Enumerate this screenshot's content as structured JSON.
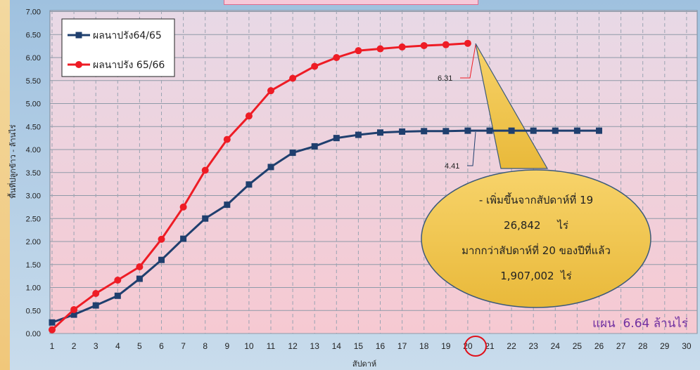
{
  "chart_data": {
    "type": "line",
    "xlabel": "สัปดาห์",
    "ylabel": "พื้นที่ปลูกข้าว - ล้านไร่",
    "xlim": [
      1,
      30
    ],
    "ylim": [
      0,
      7
    ],
    "x_ticks": [
      "1",
      "2",
      "3",
      "4",
      "5",
      "6",
      "7",
      "8",
      "9",
      "10",
      "11",
      "12",
      "13",
      "14",
      "15",
      "16",
      "17",
      "18",
      "19",
      "20",
      "21",
      "22",
      "23",
      "24",
      "25",
      "26",
      "27",
      "28",
      "29",
      "30"
    ],
    "y_ticks": [
      "0.00",
      "0.50",
      "1.00",
      "1.50",
      "2.00",
      "2.50",
      "3.00",
      "3.50",
      "4.00",
      "4.50",
      "5.00",
      "5.50",
      "6.00",
      "6.50",
      "7.00"
    ],
    "grid": true,
    "legend_position": "top-left",
    "series": [
      {
        "name": "ผลนาปรัง64/65",
        "color": "#1f3f6e",
        "marker": "square",
        "x": [
          1,
          2,
          3,
          4,
          5,
          6,
          7,
          8,
          9,
          10,
          11,
          12,
          13,
          14,
          15,
          16,
          17,
          18,
          19,
          20,
          21,
          22,
          23,
          24,
          25,
          26
        ],
        "values": [
          0.24,
          0.41,
          0.61,
          0.82,
          1.19,
          1.6,
          2.06,
          2.5,
          2.8,
          3.24,
          3.62,
          3.93,
          4.07,
          4.25,
          4.32,
          4.37,
          4.39,
          4.4,
          4.4,
          4.41,
          4.41,
          4.41,
          4.41,
          4.41,
          4.41,
          4.41
        ]
      },
      {
        "name": "ผลนาปรัง 65/66",
        "color": "#ee1c25",
        "marker": "circle",
        "x": [
          1,
          2,
          3,
          4,
          5,
          6,
          7,
          8,
          9,
          10,
          11,
          12,
          13,
          14,
          15,
          16,
          17,
          18,
          19,
          20
        ],
        "values": [
          0.08,
          0.52,
          0.87,
          1.16,
          1.45,
          2.05,
          2.75,
          3.55,
          4.22,
          4.73,
          5.28,
          5.55,
          5.81,
          6.0,
          6.15,
          6.19,
          6.23,
          6.26,
          6.28,
          6.31
        ]
      }
    ],
    "annotations": {
      "red_value": "6.31",
      "blue_value": "4.41",
      "highlight_x": "20",
      "callout_lines": [
        "- เพิ่มขึ้นจากสัปดาห์ที่ 19",
        "26,842     ไร่",
        "มากกว่าสัปดาห์ที่ 20 ของปีที่แล้ว",
        "1,907,002  ไร่"
      ],
      "plan_text": "แผน  6.64 ล้านไร่"
    }
  }
}
